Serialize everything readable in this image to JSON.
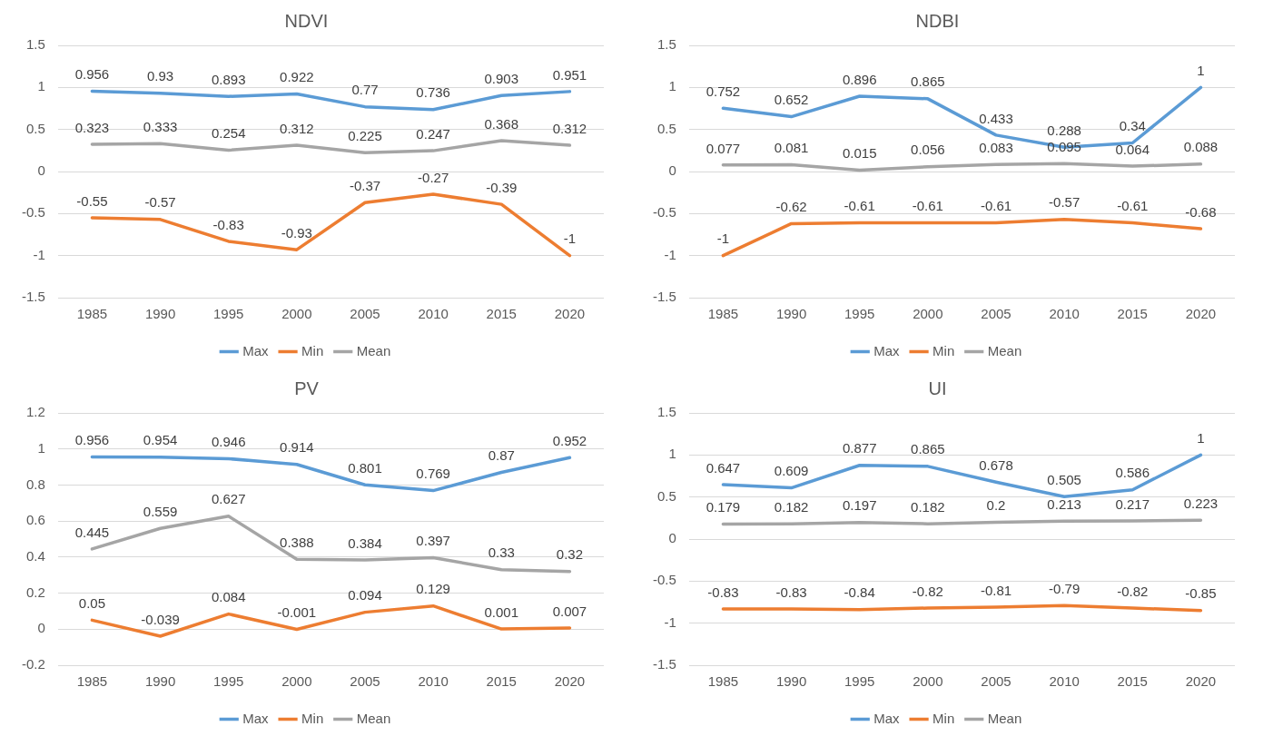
{
  "chart_data": [
    {
      "type": "line",
      "title": "NDVI",
      "categories": [
        "1985",
        "1990",
        "1995",
        "2000",
        "2005",
        "2010",
        "2015",
        "2020"
      ],
      "ylim": [
        -1.5,
        1.5
      ],
      "yticks": [
        -1.5,
        -1,
        -0.5,
        0,
        0.5,
        1,
        1.5
      ],
      "grid": "y",
      "legend": "bottom",
      "data_labels": true,
      "series": [
        {
          "name": "Max",
          "color": "#5b9bd5",
          "values": [
            0.956,
            0.93,
            0.893,
            0.922,
            0.77,
            0.736,
            0.903,
            0.951
          ]
        },
        {
          "name": "Min",
          "color": "#ed7d31",
          "values": [
            -0.55,
            -0.57,
            -0.83,
            -0.93,
            -0.37,
            -0.27,
            -0.39,
            -1
          ]
        },
        {
          "name": "Mean",
          "color": "#a5a5a5",
          "values": [
            0.323,
            0.333,
            0.254,
            0.312,
            0.225,
            0.247,
            0.368,
            0.312
          ]
        }
      ]
    },
    {
      "type": "line",
      "title": "NDBI",
      "categories": [
        "1985",
        "1990",
        "1995",
        "2000",
        "2005",
        "2010",
        "2015",
        "2020"
      ],
      "ylim": [
        -1.5,
        1.5
      ],
      "yticks": [
        -1.5,
        -1,
        -0.5,
        0,
        0.5,
        1,
        1.5
      ],
      "grid": "y",
      "legend": "bottom",
      "data_labels": true,
      "series": [
        {
          "name": "Max",
          "color": "#5b9bd5",
          "values": [
            0.752,
            0.652,
            0.896,
            0.865,
            0.433,
            0.288,
            0.34,
            1
          ]
        },
        {
          "name": "Min",
          "color": "#ed7d31",
          "values": [
            -1,
            -0.62,
            -0.61,
            -0.61,
            -0.61,
            -0.57,
            -0.61,
            -0.68
          ]
        },
        {
          "name": "Mean",
          "color": "#a5a5a5",
          "values": [
            0.077,
            0.081,
            0.015,
            0.056,
            0.083,
            0.095,
            0.064,
            0.088
          ]
        }
      ]
    },
    {
      "type": "line",
      "title": "PV",
      "categories": [
        "1985",
        "1990",
        "1995",
        "2000",
        "2005",
        "2010",
        "2015",
        "2020"
      ],
      "ylim": [
        -0.2,
        1.2
      ],
      "yticks": [
        -0.2,
        0,
        0.2,
        0.4,
        0.6,
        0.8,
        1,
        1.2
      ],
      "grid": "y",
      "legend": "bottom",
      "data_labels": true,
      "series": [
        {
          "name": "Max",
          "color": "#5b9bd5",
          "values": [
            0.956,
            0.954,
            0.946,
            0.914,
            0.801,
            0.769,
            0.87,
            0.952
          ]
        },
        {
          "name": "Min",
          "color": "#ed7d31",
          "values": [
            0.05,
            -0.039,
            0.084,
            -0.001,
            0.094,
            0.129,
            0.001,
            0.007
          ]
        },
        {
          "name": "Mean",
          "color": "#a5a5a5",
          "values": [
            0.445,
            0.559,
            0.627,
            0.388,
            0.384,
            0.397,
            0.33,
            0.32
          ]
        }
      ]
    },
    {
      "type": "line",
      "title": "UI",
      "categories": [
        "1985",
        "1990",
        "1995",
        "2000",
        "2005",
        "2010",
        "2015",
        "2020"
      ],
      "ylim": [
        -1.5,
        1.5
      ],
      "yticks": [
        -1.5,
        -1,
        -0.5,
        0,
        0.5,
        1,
        1.5
      ],
      "grid": "y",
      "legend": "bottom",
      "data_labels": true,
      "series": [
        {
          "name": "Max",
          "color": "#5b9bd5",
          "values": [
            0.647,
            0.609,
            0.877,
            0.865,
            0.678,
            0.505,
            0.586,
            1
          ]
        },
        {
          "name": "Min",
          "color": "#ed7d31",
          "values": [
            -0.83,
            -0.83,
            -0.84,
            -0.82,
            -0.81,
            -0.79,
            -0.82,
            -0.85
          ]
        },
        {
          "name": "Mean",
          "color": "#a5a5a5",
          "values": [
            0.179,
            0.182,
            0.197,
            0.182,
            0.2,
            0.213,
            0.217,
            0.223
          ]
        }
      ]
    }
  ]
}
